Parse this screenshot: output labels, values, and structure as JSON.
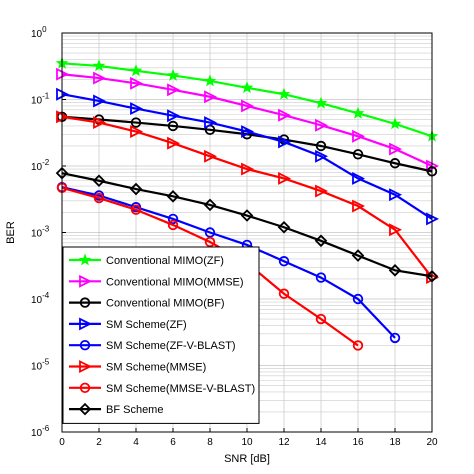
{
  "chart_data": {
    "type": "line",
    "title": "",
    "xlabel": "SNR [dB]",
    "ylabel": "BER",
    "xlim": [
      0,
      20
    ],
    "ylim": [
      1e-06,
      1
    ],
    "yscale": "log",
    "grid": true,
    "legend_position": "bottom-left",
    "x_ticks": [
      0,
      2,
      4,
      6,
      8,
      10,
      12,
      14,
      16,
      18,
      20
    ],
    "y_ticks": [
      {
        "value": 1,
        "base": "10",
        "exp": "0"
      },
      {
        "value": 0.1,
        "base": "10",
        "exp": "-1"
      },
      {
        "value": 0.01,
        "base": "10",
        "exp": "-2"
      },
      {
        "value": 0.001,
        "base": "10",
        "exp": "-3"
      },
      {
        "value": 0.0001,
        "base": "10",
        "exp": "-4"
      },
      {
        "value": 1e-05,
        "base": "10",
        "exp": "-5"
      },
      {
        "value": 1e-06,
        "base": "10",
        "exp": "-6"
      }
    ],
    "series": [
      {
        "name": "Conventional MIMO(ZF)",
        "color": "#00ff00",
        "marker": "star",
        "x": [
          0,
          2,
          4,
          6,
          8,
          10,
          12,
          14,
          16,
          18,
          20
        ],
        "y": [
          0.35,
          0.32,
          0.27,
          0.23,
          0.19,
          0.15,
          0.12,
          0.088,
          0.062,
          0.043,
          0.028
        ]
      },
      {
        "name": "Conventional MIMO(MMSE)",
        "color": "#ff00ff",
        "marker": "triangle-right",
        "x": [
          0,
          2,
          4,
          6,
          8,
          10,
          12,
          14,
          16,
          18,
          20
        ],
        "y": [
          0.24,
          0.21,
          0.175,
          0.14,
          0.11,
          0.08,
          0.058,
          0.041,
          0.028,
          0.018,
          0.01
        ]
      },
      {
        "name": "Conventional MIMO(BF)",
        "color": "#000000",
        "marker": "circle",
        "x": [
          0,
          2,
          4,
          6,
          8,
          10,
          12,
          14,
          16,
          18,
          20
        ],
        "y": [
          0.055,
          0.05,
          0.045,
          0.04,
          0.035,
          0.03,
          0.025,
          0.02,
          0.015,
          0.011,
          0.0083
        ]
      },
      {
        "name": "SM Scheme(ZF)",
        "color": "#0000ff",
        "marker": "triangle-right",
        "x": [
          0,
          2,
          4,
          6,
          8,
          10,
          12,
          14,
          16,
          18,
          20
        ],
        "y": [
          0.12,
          0.095,
          0.073,
          0.057,
          0.045,
          0.033,
          0.023,
          0.014,
          0.0065,
          0.0037,
          0.0016
        ]
      },
      {
        "name": "SM Scheme(ZF-V-BLAST)",
        "color": "#0000ff",
        "marker": "circle",
        "x": [
          0,
          2,
          4,
          6,
          8,
          10,
          12,
          14,
          16,
          18
        ],
        "y": [
          0.0048,
          0.0036,
          0.0024,
          0.0016,
          0.001,
          0.00065,
          0.00037,
          0.00021,
          0.0001,
          2.6e-05
        ]
      },
      {
        "name": "SM Scheme(MMSE)",
        "color": "#ff0000",
        "marker": "triangle-right",
        "x": [
          0,
          2,
          4,
          6,
          8,
          10,
          12,
          14,
          16,
          18,
          20
        ],
        "y": [
          0.055,
          0.045,
          0.033,
          0.022,
          0.014,
          0.009,
          0.0065,
          0.0042,
          0.0025,
          0.0011,
          0.00021
        ]
      },
      {
        "name": "SM Scheme(MMSE-V-BLAST)",
        "color": "#ff0000",
        "marker": "circle",
        "x": [
          0,
          2,
          4,
          6,
          8,
          10,
          12,
          14,
          16
        ],
        "y": [
          0.0047,
          0.0033,
          0.0022,
          0.0013,
          0.00072,
          0.00035,
          0.00012,
          5e-05,
          2e-05
        ]
      },
      {
        "name": "BF Scheme",
        "color": "#000000",
        "marker": "diamond",
        "x": [
          0,
          2,
          4,
          6,
          8,
          10,
          12,
          14,
          16,
          18,
          20
        ],
        "y": [
          0.0078,
          0.006,
          0.0045,
          0.0035,
          0.0026,
          0.0018,
          0.0012,
          0.00075,
          0.00045,
          0.00027,
          0.00022
        ]
      }
    ]
  }
}
